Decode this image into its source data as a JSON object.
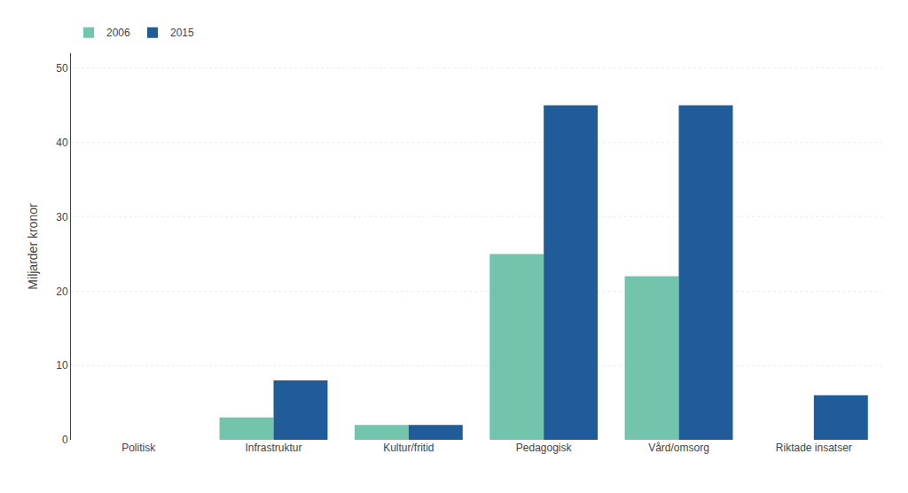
{
  "chart_data": {
    "type": "bar",
    "categories": [
      "Politisk",
      "Infrastruktur",
      "Kultur/fritid",
      "Pedagogisk",
      "Vård/omsorg",
      "Riktade insatser"
    ],
    "series": [
      {
        "name": "2006",
        "color": "#72C4AC",
        "values": [
          0,
          3,
          2,
          25,
          22,
          0
        ]
      },
      {
        "name": "2015",
        "color": "#1F5C99",
        "values": [
          0,
          8,
          2,
          45,
          45,
          6
        ]
      }
    ],
    "ylabel": "Miljarder kronor",
    "ylim": [
      0,
      52
    ],
    "yticks": [
      0,
      10,
      20,
      30,
      40,
      50
    ],
    "grid": true,
    "legend": "upper left"
  }
}
